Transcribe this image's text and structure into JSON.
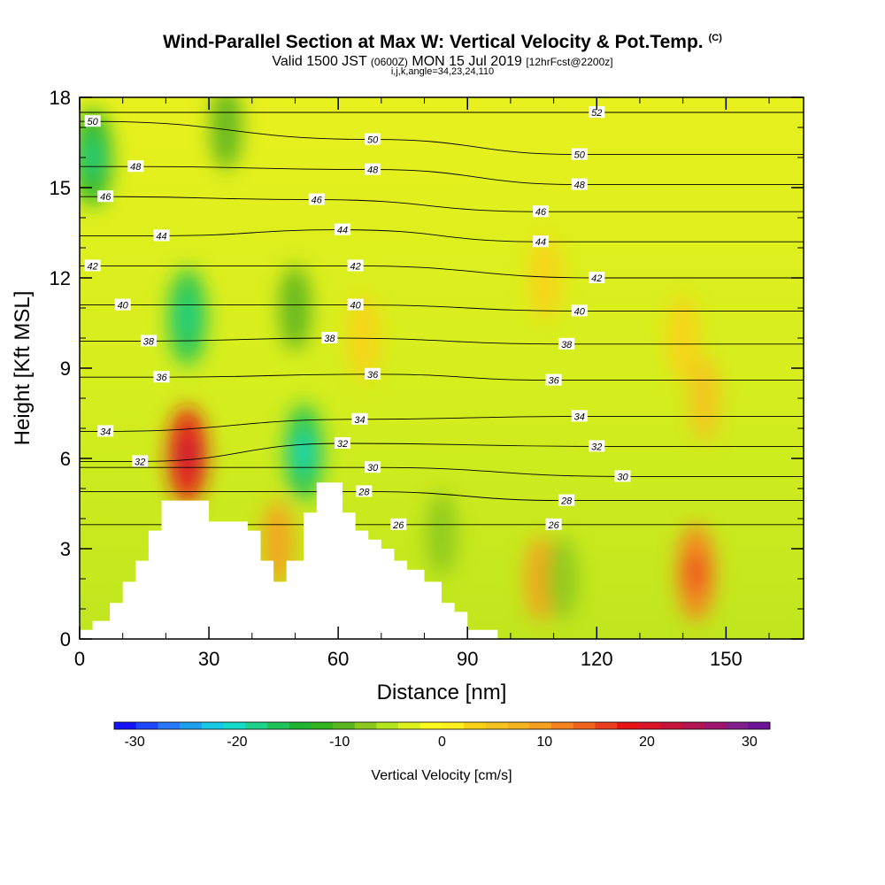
{
  "header": {
    "title": "Wind-Parallel Section at Max W: Vertical Velocity & Pot.Temp.",
    "title_mark": "(C)",
    "valid_prefix": "Valid 1500 JST ",
    "valid_utc": "(0600Z)",
    "valid_date": " MON 15 Jul 2019 ",
    "forecast": "[12hrFcst@2200z]",
    "params": "i,j,k,angle=34,23,24,110"
  },
  "chart_data": {
    "type": "heatmap",
    "xlabel": "Distance [nm]",
    "ylabel": "Height [Kft MSL]",
    "xlim": [
      0,
      168
    ],
    "ylim": [
      0,
      18
    ],
    "xticks": [
      "0",
      "30",
      "60",
      "90",
      "120",
      "150"
    ],
    "yticks": [
      "0",
      "3",
      "6",
      "9",
      "12",
      "15",
      "18"
    ],
    "colorbar": {
      "title": "Vertical Velocity [cm/s]",
      "range": [
        -32,
        32
      ],
      "tick_labels": [
        "-30",
        "-20",
        "-10",
        "0",
        "10",
        "20",
        "30"
      ],
      "colors": [
        "#1414ff",
        "#1e46ff",
        "#2878ff",
        "#1ea0f0",
        "#14c8e6",
        "#14dcc8",
        "#1ed28c",
        "#1ec35a",
        "#1eb432",
        "#32b41e",
        "#5ab41e",
        "#8cc81e",
        "#b4e61e",
        "#dcf01e",
        "#fafa1e",
        "#fff01e",
        "#fad214",
        "#f5c31e",
        "#f5b41e",
        "#f5a01e",
        "#f5821e",
        "#f0641e",
        "#eb3c1e",
        "#e61414",
        "#dc1428",
        "#c8143c",
        "#b41450",
        "#a0146e",
        "#821e8c",
        "#6e1496"
      ]
    },
    "w_features": [
      {
        "x": 25,
        "y": 6.1,
        "w": 18
      },
      {
        "x": 25,
        "y": 10.7,
        "w": -15
      },
      {
        "x": 52,
        "y": 6.2,
        "w": -16
      },
      {
        "x": 50,
        "y": 11,
        "w": -10
      },
      {
        "x": 46,
        "y": 3.2,
        "w": 10
      },
      {
        "x": 3,
        "y": 16,
        "w": -14
      },
      {
        "x": 34,
        "y": 17,
        "w": -10
      },
      {
        "x": 143,
        "y": 2.2,
        "w": 12
      },
      {
        "x": 107,
        "y": 2,
        "w": 9
      },
      {
        "x": 112,
        "y": 2,
        "w": -7
      },
      {
        "x": 84,
        "y": 3.5,
        "w": -7
      },
      {
        "x": 108,
        "y": 12,
        "w": 3
      },
      {
        "x": 140,
        "y": 10,
        "w": 3
      },
      {
        "x": 145,
        "y": 8,
        "w": 5
      },
      {
        "x": 66,
        "y": 10,
        "w": 4
      }
    ],
    "theta_labels": [
      {
        "text": "50",
        "x": 3,
        "y": 17.2
      },
      {
        "text": "48",
        "x": 13,
        "y": 15.7
      },
      {
        "text": "46",
        "x": 6,
        "y": 14.7
      },
      {
        "text": "44",
        "x": 19,
        "y": 13.4
      },
      {
        "text": "42",
        "x": 3,
        "y": 12.4
      },
      {
        "text": "40",
        "x": 10,
        "y": 11.1
      },
      {
        "text": "38",
        "x": 16,
        "y": 9.9
      },
      {
        "text": "36",
        "x": 19,
        "y": 8.7
      },
      {
        "text": "34",
        "x": 6,
        "y": 6.9
      },
      {
        "text": "32",
        "x": 14,
        "y": 5.9
      },
      {
        "text": "50",
        "x": 68,
        "y": 16.6
      },
      {
        "text": "48",
        "x": 68,
        "y": 15.6
      },
      {
        "text": "46",
        "x": 55,
        "y": 14.6
      },
      {
        "text": "44",
        "x": 61,
        "y": 13.6
      },
      {
        "text": "42",
        "x": 64,
        "y": 12.4
      },
      {
        "text": "40",
        "x": 64,
        "y": 11.1
      },
      {
        "text": "38",
        "x": 58,
        "y": 10.0
      },
      {
        "text": "36",
        "x": 68,
        "y": 8.8
      },
      {
        "text": "34",
        "x": 65,
        "y": 7.3
      },
      {
        "text": "32",
        "x": 61,
        "y": 6.5
      },
      {
        "text": "30",
        "x": 68,
        "y": 5.7
      },
      {
        "text": "28",
        "x": 66,
        "y": 4.9
      },
      {
        "text": "26",
        "x": 74,
        "y": 3.8
      },
      {
        "text": "52",
        "x": 120,
        "y": 17.5
      },
      {
        "text": "50",
        "x": 116,
        "y": 16.1
      },
      {
        "text": "48",
        "x": 116,
        "y": 15.1
      },
      {
        "text": "46",
        "x": 107,
        "y": 14.2
      },
      {
        "text": "44",
        "x": 107,
        "y": 13.2
      },
      {
        "text": "42",
        "x": 120,
        "y": 12.0
      },
      {
        "text": "40",
        "x": 116,
        "y": 10.9
      },
      {
        "text": "38",
        "x": 113,
        "y": 9.8
      },
      {
        "text": "36",
        "x": 110,
        "y": 8.6
      },
      {
        "text": "34",
        "x": 116,
        "y": 7.4
      },
      {
        "text": "32",
        "x": 120,
        "y": 6.4
      },
      {
        "text": "30",
        "x": 126,
        "y": 5.4
      },
      {
        "text": "28",
        "x": 113,
        "y": 4.6
      },
      {
        "text": "26",
        "x": 110,
        "y": 3.8
      }
    ],
    "terrain": [
      [
        0,
        0.3
      ],
      [
        3,
        0.3
      ],
      [
        3,
        0.6
      ],
      [
        7,
        0.6
      ],
      [
        7,
        1.2
      ],
      [
        10,
        1.2
      ],
      [
        10,
        1.9
      ],
      [
        13,
        1.9
      ],
      [
        13,
        2.6
      ],
      [
        16,
        2.6
      ],
      [
        16,
        3.6
      ],
      [
        19,
        3.6
      ],
      [
        19,
        4.6
      ],
      [
        30,
        4.6
      ],
      [
        30,
        3.9
      ],
      [
        39,
        3.9
      ],
      [
        39,
        3.6
      ],
      [
        42,
        3.6
      ],
      [
        42,
        2.6
      ],
      [
        45,
        2.6
      ],
      [
        45,
        1.9
      ],
      [
        48,
        1.9
      ],
      [
        48,
        2.6
      ],
      [
        52,
        2.6
      ],
      [
        52,
        4.2
      ],
      [
        55,
        4.2
      ],
      [
        55,
        5.2
      ],
      [
        61,
        5.2
      ],
      [
        61,
        4.2
      ],
      [
        64,
        4.2
      ],
      [
        64,
        3.6
      ],
      [
        67,
        3.6
      ],
      [
        67,
        3.3
      ],
      [
        70,
        3.3
      ],
      [
        70,
        3.0
      ],
      [
        73,
        3.0
      ],
      [
        73,
        2.6
      ],
      [
        76,
        2.6
      ],
      [
        76,
        2.3
      ],
      [
        80,
        2.3
      ],
      [
        80,
        1.9
      ],
      [
        84,
        1.9
      ],
      [
        84,
        1.2
      ],
      [
        87,
        1.2
      ],
      [
        87,
        0.9
      ],
      [
        90,
        0.9
      ],
      [
        90,
        0.3
      ],
      [
        97,
        0.3
      ],
      [
        97,
        0
      ],
      [
        0,
        0
      ]
    ]
  }
}
